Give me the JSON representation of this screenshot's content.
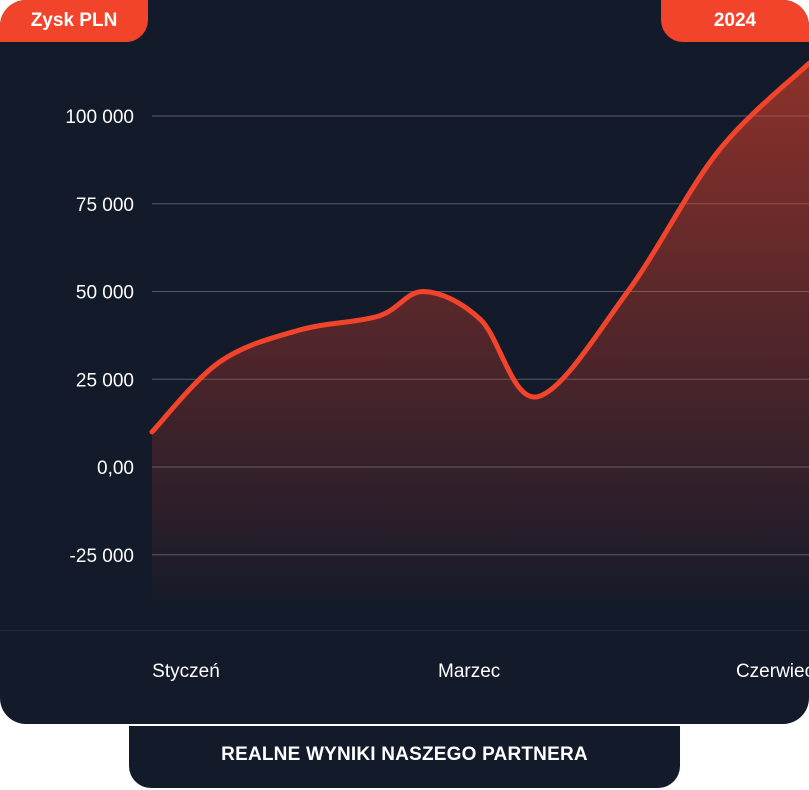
{
  "badges": {
    "left": "Zysk PLN",
    "right": "2024"
  },
  "caption": "REALNE WYNIKI NASZEGO PARTNERA",
  "colors": {
    "background": "#131a2a",
    "accent": "#f2442a",
    "grid": "#8a90a0",
    "text": "#ffffff"
  },
  "chart_data": {
    "type": "area",
    "title": "",
    "xlabel": "",
    "ylabel": "Zysk PLN",
    "ylim": [
      -25000,
      115000
    ],
    "yticks": [
      {
        "value": 100000,
        "label": "100 000"
      },
      {
        "value": 75000,
        "label": "75 000"
      },
      {
        "value": 50000,
        "label": "50 000"
      },
      {
        "value": 25000,
        "label": "25 000"
      },
      {
        "value": 0,
        "label": "0,00"
      },
      {
        "value": -25000,
        "label": "-25 000"
      }
    ],
    "xlim": [
      1,
      6.8
    ],
    "xticks": [
      {
        "value": 1.3,
        "label": "Styczeń"
      },
      {
        "value": 3.8,
        "label": "Marzec"
      },
      {
        "value": 6.5,
        "label": "Czerwiec"
      }
    ],
    "grid": true,
    "series": [
      {
        "values": [
          {
            "x": 1.0,
            "y": 10000
          },
          {
            "x": 1.6,
            "y": 30000
          },
          {
            "x": 2.3,
            "y": 39000
          },
          {
            "x": 3.0,
            "y": 43000
          },
          {
            "x": 3.4,
            "y": 50000
          },
          {
            "x": 3.9,
            "y": 42000
          },
          {
            "x": 4.4,
            "y": 20000
          },
          {
            "x": 5.2,
            "y": 50000
          },
          {
            "x": 6.0,
            "y": 90000
          },
          {
            "x": 6.8,
            "y": 115000
          }
        ]
      }
    ]
  }
}
